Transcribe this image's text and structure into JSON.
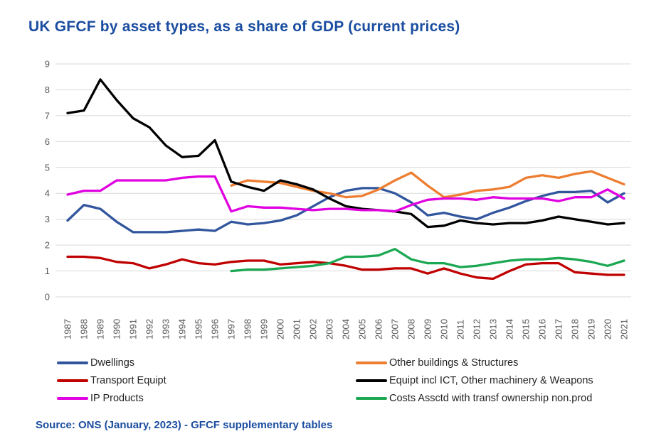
{
  "title": "UK GFCF by asset types, as a share of GDP (current prices)",
  "source": "Source: ONS (January, 2023) - GFCF supplementary tables",
  "colors": {
    "title_text": "#1b4da0",
    "source_text": "#1b4da0",
    "axis_text": "#595959",
    "gridline": "#d9d9d9",
    "background": "#ffffff"
  },
  "chart_data": {
    "type": "line",
    "title": "UK GFCF by asset types, as a share of GDP (current prices)",
    "xlabel": "",
    "ylabel": "",
    "ylim": [
      0,
      9
    ],
    "yticks": [
      0,
      1,
      2,
      3,
      4,
      5,
      6,
      7,
      8,
      9
    ],
    "grid": "horizontal",
    "legend_position": "bottom-two-columns",
    "x": [
      1987,
      1988,
      1989,
      1990,
      1991,
      1992,
      1993,
      1994,
      1995,
      1996,
      1997,
      1998,
      1999,
      2000,
      2001,
      2002,
      2003,
      2004,
      2005,
      2006,
      2007,
      2008,
      2009,
      2010,
      2011,
      2012,
      2013,
      2014,
      2015,
      2016,
      2017,
      2018,
      2019,
      2020,
      2021
    ],
    "series": [
      {
        "name": "Dwellings",
        "color": "#32569E",
        "values": [
          2.95,
          3.55,
          3.4,
          2.9,
          2.5,
          2.5,
          2.5,
          2.55,
          2.6,
          2.55,
          2.9,
          2.8,
          2.85,
          2.95,
          3.15,
          3.5,
          3.85,
          4.1,
          4.2,
          4.2,
          4.0,
          3.65,
          3.15,
          3.25,
          3.1,
          3.0,
          3.25,
          3.45,
          3.7,
          3.9,
          4.05,
          4.05,
          4.1,
          3.65,
          4.0
        ]
      },
      {
        "name": "Other buildings & Structures",
        "color": "#ED7D31",
        "values": [
          null,
          null,
          null,
          null,
          null,
          null,
          null,
          null,
          null,
          null,
          4.3,
          4.5,
          4.45,
          4.4,
          4.25,
          4.1,
          4.0,
          3.85,
          3.9,
          4.15,
          4.5,
          4.8,
          4.3,
          3.85,
          3.95,
          4.1,
          4.15,
          4.25,
          4.6,
          4.7,
          4.6,
          4.75,
          4.85,
          4.6,
          4.35
        ]
      },
      {
        "name": "Transport Equipt",
        "color": "#C00000",
        "values": [
          1.55,
          1.55,
          1.5,
          1.35,
          1.3,
          1.1,
          1.25,
          1.45,
          1.3,
          1.25,
          1.35,
          1.4,
          1.4,
          1.25,
          1.3,
          1.35,
          1.3,
          1.2,
          1.05,
          1.05,
          1.1,
          1.1,
          0.9,
          1.1,
          0.9,
          0.75,
          0.7,
          1.0,
          1.25,
          1.3,
          1.3,
          0.95,
          0.9,
          0.85,
          0.85
        ]
      },
      {
        "name": "Equipt incl ICT, Other machinery & Weapons",
        "color": "#000000",
        "values": [
          7.1,
          7.2,
          8.4,
          7.6,
          6.9,
          6.55,
          5.85,
          5.4,
          5.45,
          6.05,
          4.45,
          4.25,
          4.1,
          4.5,
          4.35,
          4.15,
          3.8,
          3.5,
          3.4,
          3.35,
          3.3,
          3.2,
          2.7,
          2.75,
          2.95,
          2.85,
          2.8,
          2.85,
          2.85,
          2.95,
          3.1,
          3.0,
          2.9,
          2.8,
          2.85
        ]
      },
      {
        "name": "IP Products",
        "color": "#E002E0",
        "values": [
          3.95,
          4.1,
          4.1,
          4.5,
          4.5,
          4.5,
          4.5,
          4.6,
          4.65,
          4.65,
          3.3,
          3.5,
          3.45,
          3.45,
          3.4,
          3.35,
          3.4,
          3.4,
          3.35,
          3.35,
          3.3,
          3.55,
          3.75,
          3.8,
          3.8,
          3.75,
          3.85,
          3.8,
          3.8,
          3.8,
          3.7,
          3.85,
          3.85,
          4.15,
          3.8
        ]
      },
      {
        "name": "Costs Assctd with transf ownership non.prod",
        "color": "#1CA853",
        "values": [
          null,
          null,
          null,
          null,
          null,
          null,
          null,
          null,
          null,
          null,
          1.0,
          1.05,
          1.05,
          1.1,
          1.15,
          1.2,
          1.3,
          1.55,
          1.55,
          1.6,
          1.85,
          1.45,
          1.3,
          1.3,
          1.15,
          1.2,
          1.3,
          1.4,
          1.45,
          1.45,
          1.5,
          1.45,
          1.35,
          1.2,
          1.4
        ]
      }
    ],
    "legend_columns": [
      [
        0,
        2,
        4
      ],
      [
        1,
        3,
        5
      ]
    ]
  }
}
